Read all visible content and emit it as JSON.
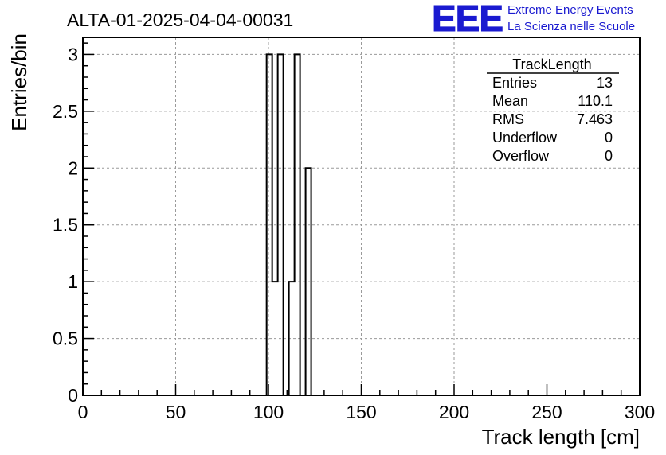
{
  "header": {
    "run_title": "ALTA-01-2025-04-04-00031"
  },
  "logo": {
    "mark": "EEE",
    "line1": "Extreme Energy Events",
    "line2": "La Scienza nelle Scuole",
    "color": "#1a1ad0"
  },
  "stats": {
    "title": "TrackLength",
    "rows": [
      {
        "label": "Entries",
        "value": "13"
      },
      {
        "label": "Mean",
        "value": "110.1"
      },
      {
        "label": "RMS",
        "value": "7.463"
      },
      {
        "label": "Underflow",
        "value": "0"
      },
      {
        "label": "Overflow",
        "value": "0"
      }
    ]
  },
  "chart_data": {
    "type": "bar",
    "title": "ALTA-01-2025-04-04-00031",
    "xlabel": "Track length [cm]",
    "ylabel": "Entries/bin",
    "xlim": [
      0,
      300
    ],
    "ylim": [
      0,
      3.15
    ],
    "xticks": [
      0,
      50,
      100,
      150,
      200,
      250,
      300
    ],
    "yticks": [
      0,
      0.5,
      1,
      1.5,
      2,
      2.5,
      3
    ],
    "xtick_labels": [
      "0",
      "50",
      "100",
      "150",
      "200",
      "250",
      "300"
    ],
    "ytick_labels": [
      "0",
      "0.5",
      "1",
      "1.5",
      "2",
      "2.5",
      "3"
    ],
    "grid": true,
    "bins": [
      {
        "x_low": 99,
        "x_high": 102,
        "count": 3
      },
      {
        "x_low": 102,
        "x_high": 105,
        "count": 1
      },
      {
        "x_low": 105,
        "x_high": 108,
        "count": 3
      },
      {
        "x_low": 108,
        "x_high": 111,
        "count": 0
      },
      {
        "x_low": 111,
        "x_high": 114,
        "count": 1
      },
      {
        "x_low": 114,
        "x_high": 117,
        "count": 3
      },
      {
        "x_low": 117,
        "x_high": 120,
        "count": 0
      },
      {
        "x_low": 120,
        "x_high": 123,
        "count": 2
      }
    ]
  }
}
